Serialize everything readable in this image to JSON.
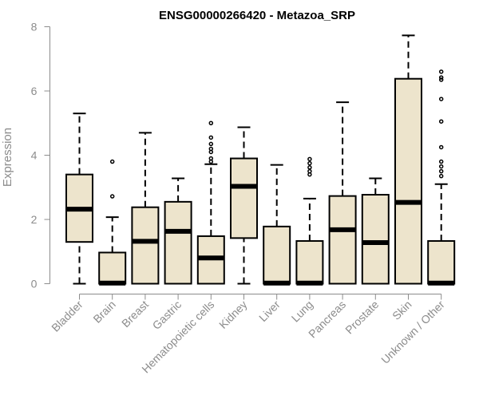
{
  "chart_data": {
    "type": "box",
    "title": "ENSG00000266420 - Metazoa_SRP",
    "xlabel": "",
    "ylabel": "Expression",
    "ylim": [
      0,
      8
    ],
    "yticks": [
      0,
      2,
      4,
      6,
      8
    ],
    "box_fill": "#ede4cc",
    "box_stroke": "#000000",
    "axis_color": "#8c8c8c",
    "categories": [
      "Bladder",
      "Brain",
      "Breast",
      "Gastric",
      "Hematopoietic cells",
      "Kidney",
      "Liver",
      "Lung",
      "Pancreas",
      "Prostate",
      "Skin",
      "Unknown / Other"
    ],
    "boxes": [
      {
        "category": "Bladder",
        "whisker_low": 0,
        "q1": 1.3,
        "median": 2.32,
        "q3": 3.4,
        "whisker_high": 5.3,
        "outliers": []
      },
      {
        "category": "Brain",
        "whisker_low": 0,
        "q1": 0,
        "median": 0.02,
        "q3": 0.97,
        "whisker_high": 2.07,
        "outliers": [
          2.72,
          3.8
        ]
      },
      {
        "category": "Breast",
        "whisker_low": 0,
        "q1": 0,
        "median": 1.32,
        "q3": 2.38,
        "whisker_high": 4.7,
        "outliers": []
      },
      {
        "category": "Gastric",
        "whisker_low": 0,
        "q1": 0,
        "median": 1.63,
        "q3": 2.55,
        "whisker_high": 3.28,
        "outliers": []
      },
      {
        "category": "Hematopoietic cells",
        "whisker_low": 0,
        "q1": 0,
        "median": 0.8,
        "q3": 1.48,
        "whisker_high": 3.72,
        "outliers": [
          3.8,
          3.9,
          4.1,
          4.2,
          4.35,
          4.55,
          5.0
        ]
      },
      {
        "category": "Kidney",
        "whisker_low": 0,
        "q1": 1.42,
        "median": 3.03,
        "q3": 3.9,
        "whisker_high": 4.87,
        "outliers": []
      },
      {
        "category": "Liver",
        "whisker_low": 0,
        "q1": 0,
        "median": 0.02,
        "q3": 1.78,
        "whisker_high": 3.7,
        "outliers": []
      },
      {
        "category": "Lung",
        "whisker_low": 0,
        "q1": 0,
        "median": 0.02,
        "q3": 1.33,
        "whisker_high": 2.65,
        "outliers": [
          3.4,
          3.5,
          3.62,
          3.75,
          3.88
        ]
      },
      {
        "category": "Pancreas",
        "whisker_low": 0,
        "q1": 0,
        "median": 1.68,
        "q3": 2.73,
        "whisker_high": 5.65,
        "outliers": []
      },
      {
        "category": "Prostate",
        "whisker_low": 0,
        "q1": 0,
        "median": 1.28,
        "q3": 2.77,
        "whisker_high": 3.28,
        "outliers": []
      },
      {
        "category": "Skin",
        "whisker_low": 0,
        "q1": 0,
        "median": 2.53,
        "q3": 6.38,
        "whisker_high": 7.73,
        "outliers": []
      },
      {
        "category": "Unknown / Other",
        "whisker_low": 0,
        "q1": 0,
        "median": 0.02,
        "q3": 1.33,
        "whisker_high": 3.1,
        "outliers": [
          3.35,
          3.5,
          3.65,
          3.8,
          4.25,
          5.05,
          5.75,
          6.35,
          6.42,
          6.6
        ]
      }
    ]
  }
}
